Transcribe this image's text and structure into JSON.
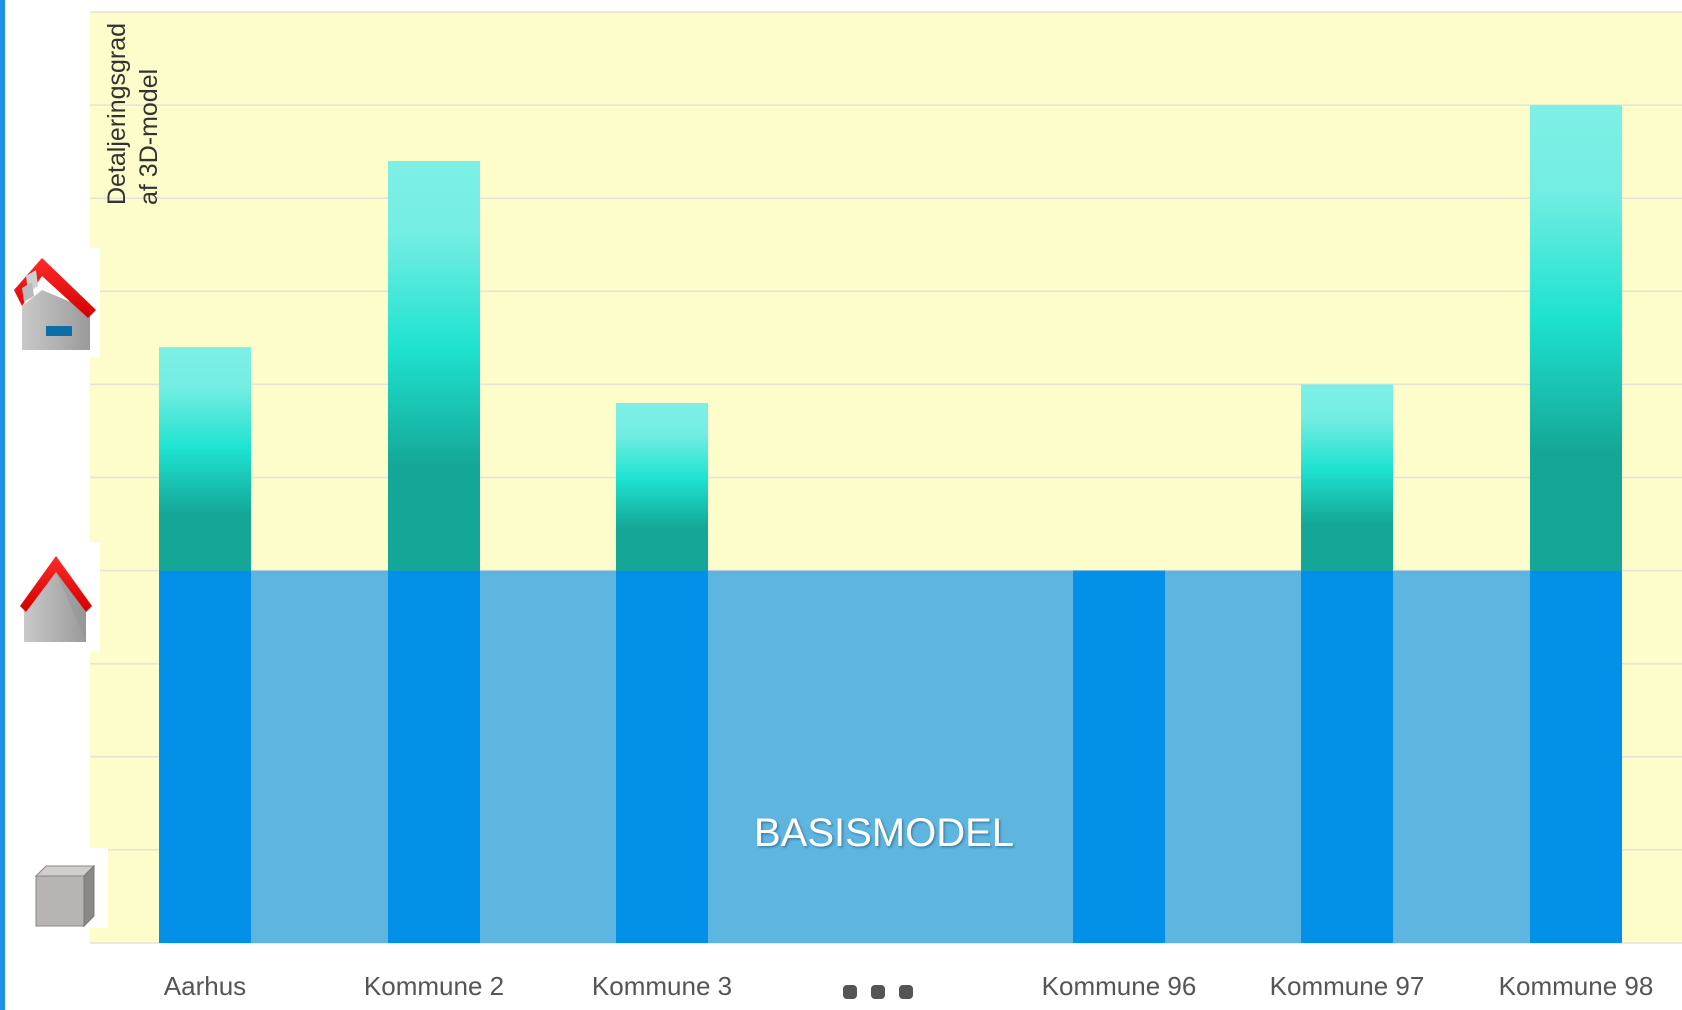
{
  "chart_data": {
    "type": "bar",
    "title": "",
    "ylabel_lines": [
      "Detaljeringsgrad",
      "af 3D-model"
    ],
    "xlabel": "",
    "categories": [
      "Aarhus",
      "Kommune 2",
      "Kommune 3",
      "Kommune 96",
      "Kommune 97",
      "Kommune 98"
    ],
    "ellipsis": "•••",
    "base_level": 4,
    "values": [
      6.4,
      8.4,
      5.8,
      4.0,
      6.0,
      9.0
    ],
    "ylim": [
      0,
      10
    ],
    "grid": true,
    "band_label": "BASISMODEL",
    "icon_levels": [
      {
        "name": "cube-icon",
        "level": 0.6
      },
      {
        "name": "simple-house-icon",
        "level": 3.7
      },
      {
        "name": "detailed-house-icon",
        "level": 6.7
      }
    ],
    "colors": {
      "plot_bg": "#fdfccb",
      "grid": "#e4e4d6",
      "band": "#5db5e0",
      "base_bar": "#0390e8",
      "detail_top": "#7df0e6",
      "detail_mid": "#1fe3d1",
      "detail_bottom": "#14a696",
      "label": "#555555"
    }
  }
}
